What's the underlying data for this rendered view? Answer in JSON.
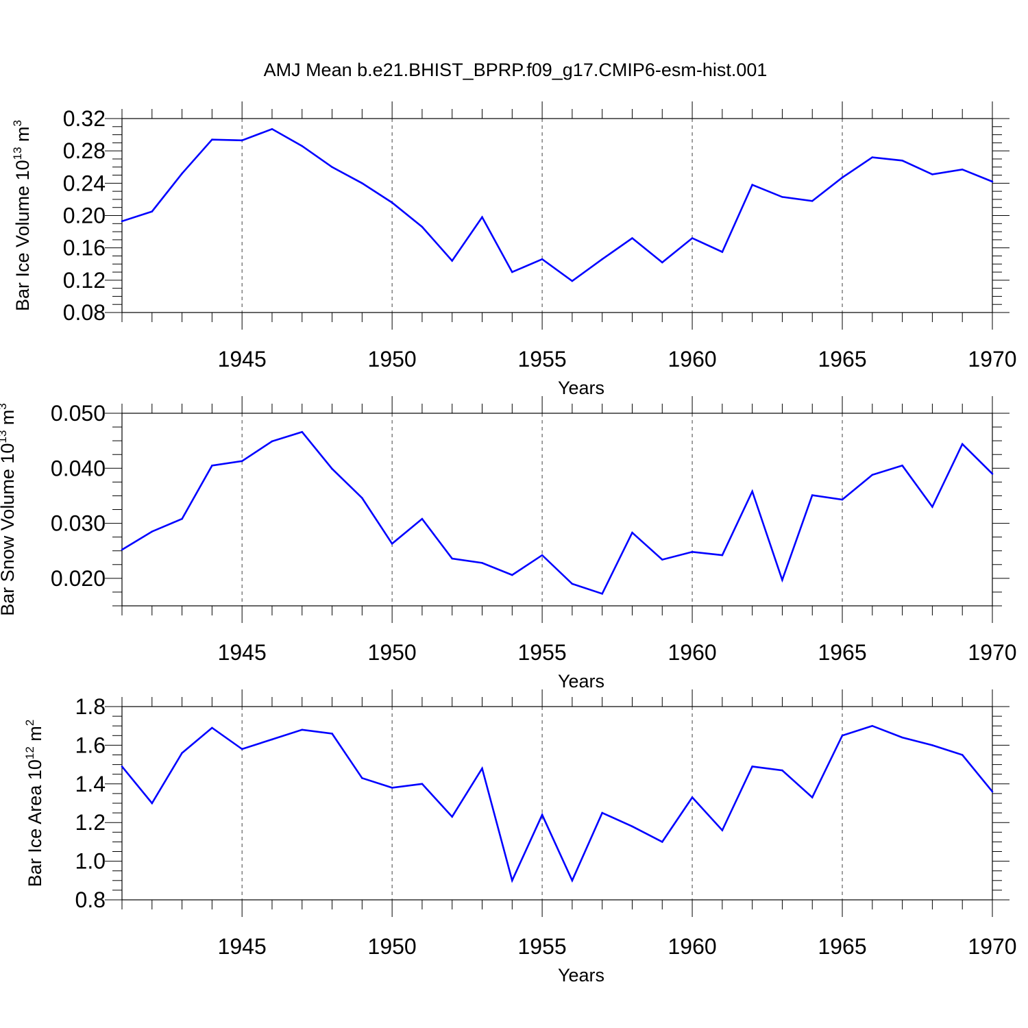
{
  "figure_title": "AMJ Mean b.e21.BHIST_BPRP.f09_g17.CMIP6-esm-hist.001",
  "line_color": "#0000ff",
  "chart_data": [
    {
      "type": "line",
      "ylabel_base": "Bar Ice Volume 10",
      "ylabel_exp": "13",
      "ylabel_unit": " m",
      "ylabel_unit_exp": "3",
      "xlabel": "Years",
      "xlim": [
        1941,
        1970
      ],
      "ylim": [
        0.08,
        0.32
      ],
      "ytick_values": [
        0.08,
        0.12,
        0.16,
        0.2,
        0.24,
        0.28,
        0.32
      ],
      "ytick_labels": [
        "0.08",
        "0.12",
        "0.16",
        "0.20",
        "0.24",
        "0.28",
        "0.32"
      ],
      "xtick_values": [
        1945,
        1950,
        1955,
        1960,
        1965,
        1970
      ],
      "xtick_labels": [
        "1945",
        "1950",
        "1955",
        "1960",
        "1965",
        "1970"
      ],
      "grid": "vertical dashed at major x ticks",
      "x": [
        1941,
        1942,
        1943,
        1944,
        1945,
        1946,
        1947,
        1948,
        1949,
        1950,
        1951,
        1952,
        1953,
        1954,
        1955,
        1956,
        1957,
        1958,
        1959,
        1960,
        1961,
        1962,
        1963,
        1964,
        1965,
        1966,
        1967,
        1968,
        1969,
        1970
      ],
      "y": [
        0.193,
        0.205,
        0.252,
        0.294,
        0.293,
        0.307,
        0.286,
        0.26,
        0.24,
        0.216,
        0.186,
        0.144,
        0.198,
        0.13,
        0.146,
        0.119,
        0.146,
        0.172,
        0.142,
        0.172,
        0.155,
        0.238,
        0.223,
        0.218,
        0.247,
        0.272,
        0.268,
        0.251,
        0.257,
        0.242
      ]
    },
    {
      "type": "line",
      "ylabel_base": "Bar Snow Volume 10",
      "ylabel_exp": "13",
      "ylabel_unit": " m",
      "ylabel_unit_exp": "3",
      "xlabel": "Years",
      "xlim": [
        1941,
        1970
      ],
      "ylim": [
        0.015,
        0.05
      ],
      "ytick_values": [
        0.02,
        0.03,
        0.04,
        0.05
      ],
      "ytick_labels": [
        "0.020",
        "0.030",
        "0.040",
        "0.050"
      ],
      "xtick_values": [
        1945,
        1950,
        1955,
        1960,
        1965,
        1970
      ],
      "xtick_labels": [
        "1945",
        "1950",
        "1955",
        "1960",
        "1965",
        "1970"
      ],
      "grid": "vertical dashed at major x ticks",
      "x": [
        1941,
        1942,
        1943,
        1944,
        1945,
        1946,
        1947,
        1948,
        1949,
        1950,
        1951,
        1952,
        1953,
        1954,
        1955,
        1956,
        1957,
        1958,
        1959,
        1960,
        1961,
        1962,
        1963,
        1964,
        1965,
        1966,
        1967,
        1968,
        1969,
        1970
      ],
      "y": [
        0.0252,
        0.0285,
        0.0308,
        0.0405,
        0.0413,
        0.0449,
        0.0466,
        0.0399,
        0.0346,
        0.0263,
        0.0308,
        0.0236,
        0.0228,
        0.0206,
        0.0242,
        0.019,
        0.0172,
        0.0283,
        0.0234,
        0.0248,
        0.0242,
        0.0358,
        0.0197,
        0.0351,
        0.0343,
        0.0388,
        0.0405,
        0.033,
        0.0444,
        0.039
      ]
    },
    {
      "type": "line",
      "ylabel_base": "Bar Ice Area 10",
      "ylabel_exp": "12",
      "ylabel_unit": " m",
      "ylabel_unit_exp": "2",
      "xlabel": "Years",
      "xlim": [
        1941,
        1970
      ],
      "ylim": [
        0.8,
        1.8
      ],
      "ytick_values": [
        0.8,
        1.0,
        1.2,
        1.4,
        1.6,
        1.8
      ],
      "ytick_labels": [
        "0.8",
        "1.0",
        "1.2",
        "1.4",
        "1.6",
        "1.8"
      ],
      "xtick_values": [
        1945,
        1950,
        1955,
        1960,
        1965,
        1970
      ],
      "xtick_labels": [
        "1945",
        "1950",
        "1955",
        "1960",
        "1965",
        "1970"
      ],
      "grid": "vertical dashed at major x ticks",
      "x": [
        1941,
        1942,
        1943,
        1944,
        1945,
        1946,
        1947,
        1948,
        1949,
        1950,
        1951,
        1952,
        1953,
        1954,
        1955,
        1956,
        1957,
        1958,
        1959,
        1960,
        1961,
        1962,
        1963,
        1964,
        1965,
        1966,
        1967,
        1968,
        1969,
        1970
      ],
      "y": [
        1.49,
        1.3,
        1.56,
        1.69,
        1.58,
        1.63,
        1.68,
        1.66,
        1.43,
        1.38,
        1.4,
        1.23,
        1.48,
        0.9,
        1.24,
        0.9,
        1.25,
        1.18,
        1.1,
        1.33,
        1.16,
        1.49,
        1.47,
        1.33,
        1.65,
        1.7,
        1.64,
        1.6,
        1.55,
        1.36
      ]
    }
  ]
}
